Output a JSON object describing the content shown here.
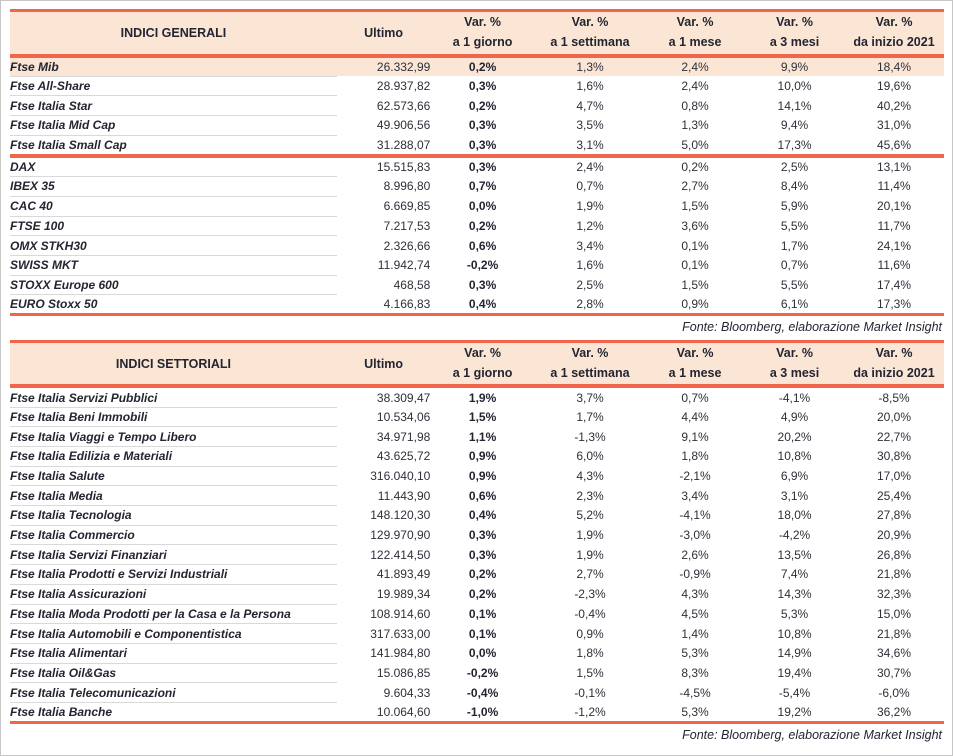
{
  "page": {
    "fonte": "Fonte: Bloomberg, elaborazione Market Insight"
  },
  "columns": {
    "ultimo": "Ultimo",
    "var_label": "Var. %",
    "periods": [
      "a 1 giorno",
      "a 1 settimana",
      "a 1 mese",
      "a 3 mesi",
      "da inizio 2021"
    ]
  },
  "general": {
    "title": "INDICI GENERALI",
    "group1": [
      {
        "name": "Ftse Mib",
        "ultimo": "26.332,99",
        "d1": "0,2%",
        "w1": "1,3%",
        "m1": "2,4%",
        "m3": "9,9%",
        "ytd": "18,4%",
        "highlight": true
      },
      {
        "name": "Ftse All-Share",
        "ultimo": "28.937,82",
        "d1": "0,3%",
        "w1": "1,6%",
        "m1": "2,4%",
        "m3": "10,0%",
        "ytd": "19,6%"
      },
      {
        "name": "Ftse Italia Star",
        "ultimo": "62.573,66",
        "d1": "0,2%",
        "w1": "4,7%",
        "m1": "0,8%",
        "m3": "14,1%",
        "ytd": "40,2%"
      },
      {
        "name": "Ftse Italia Mid Cap",
        "ultimo": "49.906,56",
        "d1": "0,3%",
        "w1": "3,5%",
        "m1": "1,3%",
        "m3": "9,4%",
        "ytd": "31,0%"
      },
      {
        "name": "Ftse Italia Small Cap",
        "ultimo": "31.288,07",
        "d1": "0,3%",
        "w1": "3,1%",
        "m1": "5,0%",
        "m3": "17,3%",
        "ytd": "45,6%"
      }
    ],
    "group2": [
      {
        "name": "DAX",
        "ultimo": "15.515,83",
        "d1": "0,3%",
        "w1": "2,4%",
        "m1": "0,2%",
        "m3": "2,5%",
        "ytd": "13,1%"
      },
      {
        "name": "IBEX 35",
        "ultimo": "8.996,80",
        "d1": "0,7%",
        "w1": "0,7%",
        "m1": "2,7%",
        "m3": "8,4%",
        "ytd": "11,4%"
      },
      {
        "name": "CAC 40",
        "ultimo": "6.669,85",
        "d1": "0,0%",
        "w1": "1,9%",
        "m1": "1,5%",
        "m3": "5,9%",
        "ytd": "20,1%"
      },
      {
        "name": "FTSE 100",
        "ultimo": "7.217,53",
        "d1": "0,2%",
        "w1": "1,2%",
        "m1": "3,6%",
        "m3": "5,5%",
        "ytd": "11,7%"
      },
      {
        "name": "OMX STKH30",
        "ultimo": "2.326,66",
        "d1": "0,6%",
        "w1": "3,4%",
        "m1": "0,1%",
        "m3": "1,7%",
        "ytd": "24,1%"
      },
      {
        "name": "SWISS MKT",
        "ultimo": "11.942,74",
        "d1": "-0,2%",
        "w1": "1,6%",
        "m1": "0,1%",
        "m3": "0,7%",
        "ytd": "11,6%"
      },
      {
        "name": "STOXX Europe 600",
        "ultimo": "468,58",
        "d1": "0,3%",
        "w1": "2,5%",
        "m1": "1,5%",
        "m3": "5,5%",
        "ytd": "17,4%"
      },
      {
        "name": "EURO Stoxx 50",
        "ultimo": "4.166,83",
        "d1": "0,4%",
        "w1": "2,8%",
        "m1": "0,9%",
        "m3": "6,1%",
        "ytd": "17,3%"
      }
    ]
  },
  "settoriali": {
    "title": "INDICI SETTORIALI",
    "rows": [
      {
        "name": "Ftse Italia Servizi Pubblici",
        "ultimo": "38.309,47",
        "d1": "1,9%",
        "w1": "3,7%",
        "m1": "0,7%",
        "m3": "-4,1%",
        "ytd": "-8,5%"
      },
      {
        "name": "Ftse Italia Beni Immobili",
        "ultimo": "10.534,06",
        "d1": "1,5%",
        "w1": "1,7%",
        "m1": "4,4%",
        "m3": "4,9%",
        "ytd": "20,0%"
      },
      {
        "name": "Ftse Italia Viaggi e Tempo Libero",
        "ultimo": "34.971,98",
        "d1": "1,1%",
        "w1": "-1,3%",
        "m1": "9,1%",
        "m3": "20,2%",
        "ytd": "22,7%"
      },
      {
        "name": "Ftse Italia Edilizia e Materiali",
        "ultimo": "43.625,72",
        "d1": "0,9%",
        "w1": "6,0%",
        "m1": "1,8%",
        "m3": "10,8%",
        "ytd": "30,8%"
      },
      {
        "name": "Ftse Italia Salute",
        "ultimo": "316.040,10",
        "d1": "0,9%",
        "w1": "4,3%",
        "m1": "-2,1%",
        "m3": "6,9%",
        "ytd": "17,0%"
      },
      {
        "name": "Ftse Italia Media",
        "ultimo": "11.443,90",
        "d1": "0,6%",
        "w1": "2,3%",
        "m1": "3,4%",
        "m3": "3,1%",
        "ytd": "25,4%"
      },
      {
        "name": "Ftse Italia Tecnologia",
        "ultimo": "148.120,30",
        "d1": "0,4%",
        "w1": "5,2%",
        "m1": "-4,1%",
        "m3": "18,0%",
        "ytd": "27,8%"
      },
      {
        "name": "Ftse Italia Commercio",
        "ultimo": "129.970,90",
        "d1": "0,3%",
        "w1": "1,9%",
        "m1": "-3,0%",
        "m3": "-4,2%",
        "ytd": "20,9%"
      },
      {
        "name": "Ftse Italia Servizi Finanziari",
        "ultimo": "122.414,50",
        "d1": "0,3%",
        "w1": "1,9%",
        "m1": "2,6%",
        "m3": "13,5%",
        "ytd": "26,8%"
      },
      {
        "name": "Ftse Italia Prodotti e Servizi Industriali",
        "ultimo": "41.893,49",
        "d1": "0,2%",
        "w1": "2,7%",
        "m1": "-0,9%",
        "m3": "7,4%",
        "ytd": "21,8%"
      },
      {
        "name": "Ftse Italia Assicurazioni",
        "ultimo": "19.989,34",
        "d1": "0,2%",
        "w1": "-2,3%",
        "m1": "4,3%",
        "m3": "14,3%",
        "ytd": "32,3%"
      },
      {
        "name": "Ftse Italia Moda Prodotti per la Casa e la Persona",
        "ultimo": "108.914,60",
        "d1": "0,1%",
        "w1": "-0,4%",
        "m1": "4,5%",
        "m3": "5,3%",
        "ytd": "15,0%"
      },
      {
        "name": "Ftse Italia Automobili e Componentistica",
        "ultimo": "317.633,00",
        "d1": "0,1%",
        "w1": "0,9%",
        "m1": "1,4%",
        "m3": "10,8%",
        "ytd": "21,8%"
      },
      {
        "name": "Ftse Italia Alimentari",
        "ultimo": "141.984,80",
        "d1": "0,0%",
        "w1": "1,8%",
        "m1": "5,3%",
        "m3": "14,9%",
        "ytd": "34,6%"
      },
      {
        "name": "Ftse Italia Oil&Gas",
        "ultimo": "15.086,85",
        "d1": "-0,2%",
        "w1": "1,5%",
        "m1": "8,3%",
        "m3": "19,4%",
        "ytd": "30,7%"
      },
      {
        "name": "Ftse Italia Telecomunicazioni",
        "ultimo": "9.604,33",
        "d1": "-0,4%",
        "w1": "-0,1%",
        "m1": "-4,5%",
        "m3": "-5,4%",
        "ytd": "-6,0%"
      },
      {
        "name": "Ftse Italia Banche",
        "ultimo": "10.064,60",
        "d1": "-1,0%",
        "w1": "-1,2%",
        "m1": "5,3%",
        "m3": "19,2%",
        "ytd": "36,2%"
      }
    ]
  }
}
